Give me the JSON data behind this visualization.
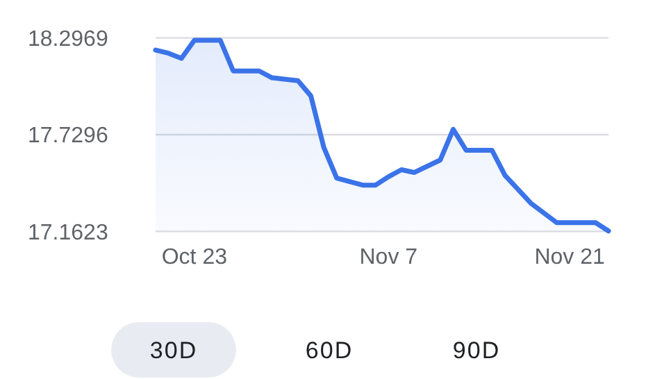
{
  "chart_data": {
    "type": "area",
    "color": "#3b73e8",
    "x": [
      "--10-20",
      "--10-21",
      "--10-22",
      "--10-23",
      "--10-25",
      "--10-26",
      "--10-28",
      "--10-29",
      "--10-31",
      "--11-01",
      "--11-02",
      "--11-03",
      "--11-05",
      "--11-06",
      "--11-07",
      "--11-08",
      "--11-09",
      "--11-11",
      "--11-12",
      "--11-13",
      "--11-15",
      "--11-16",
      "--11-18",
      "--11-20",
      "--11-23",
      "--11-24"
    ],
    "values": [
      18.226,
      18.207,
      18.177,
      18.283,
      18.283,
      18.103,
      18.103,
      18.063,
      18.046,
      17.957,
      17.655,
      17.475,
      17.434,
      17.434,
      17.483,
      17.524,
      17.508,
      17.581,
      17.761,
      17.638,
      17.638,
      17.491,
      17.328,
      17.214,
      17.214,
      17.165
    ],
    "xlim": [
      "--10-20",
      "--11-24"
    ],
    "xticks": [
      {
        "value": "--10-23",
        "label": "Oct 23"
      },
      {
        "value": "--11-07",
        "label": "Nov 7"
      },
      {
        "value": "--11-21",
        "label": "Nov 21"
      }
    ],
    "ylim": [
      17.1623,
      18.2969
    ],
    "yticks": [
      17.1623,
      17.7296,
      18.2969
    ],
    "grid": "y",
    "annotations": [
      "30D",
      "60D",
      "90D"
    ]
  }
}
